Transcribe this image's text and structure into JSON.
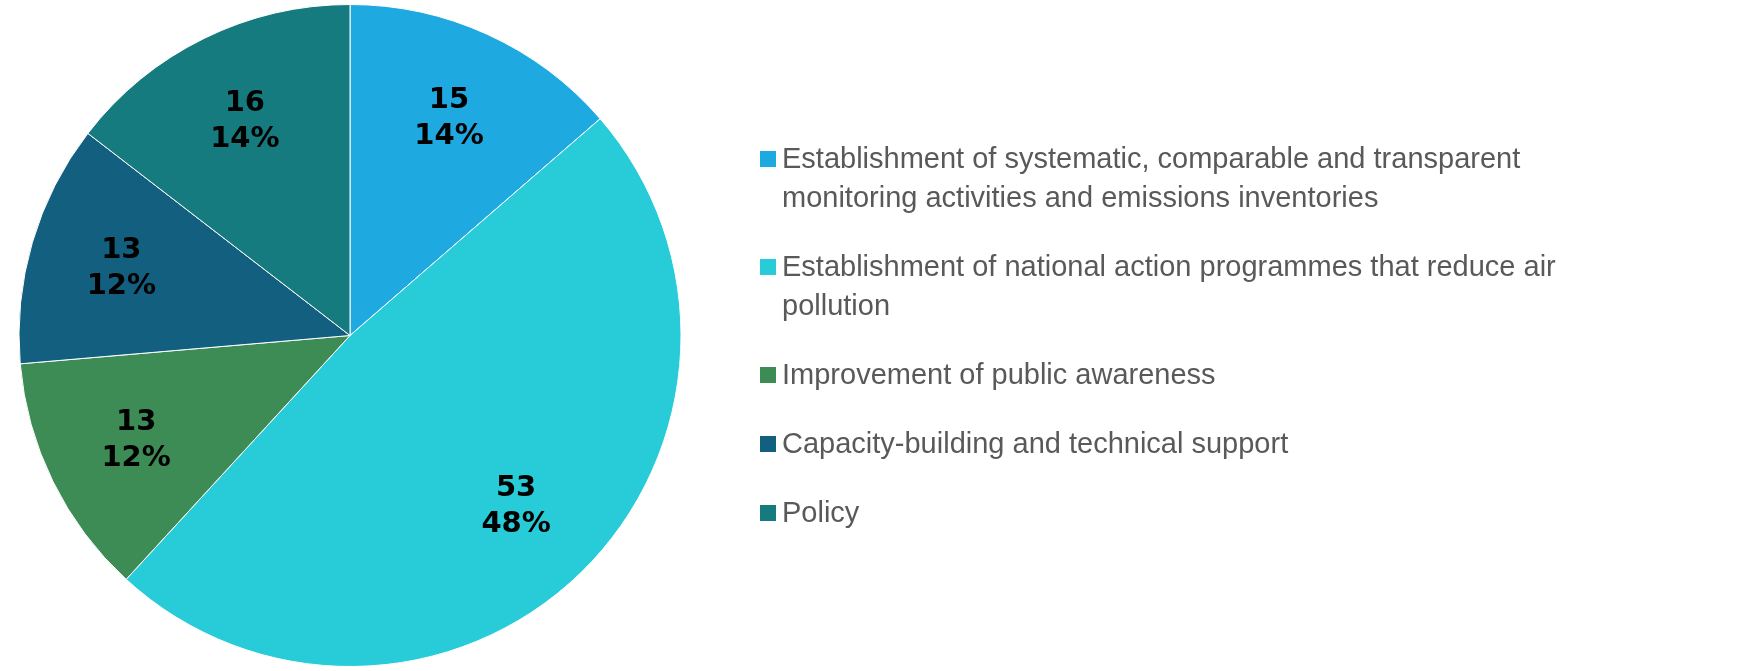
{
  "chart_data": {
    "type": "pie",
    "categories": [
      "Establishment of systematic, comparable and transparent monitoring activities and emissions inventories",
      "Establishment of national action programmes that reduce air pollution",
      "Improvement of public awareness",
      "Capacity-building and technical support",
      "Policy"
    ],
    "values": [
      15,
      53,
      13,
      13,
      16
    ],
    "colors": [
      "#1fa9e1",
      "#27ccd8",
      "#3d8c55",
      "#135f80",
      "#167b7e"
    ],
    "value_labels": [
      "15\n14%",
      "53\n48%",
      "13\n12%",
      "13\n12%",
      "16\n14%"
    ],
    "legend": "right"
  }
}
